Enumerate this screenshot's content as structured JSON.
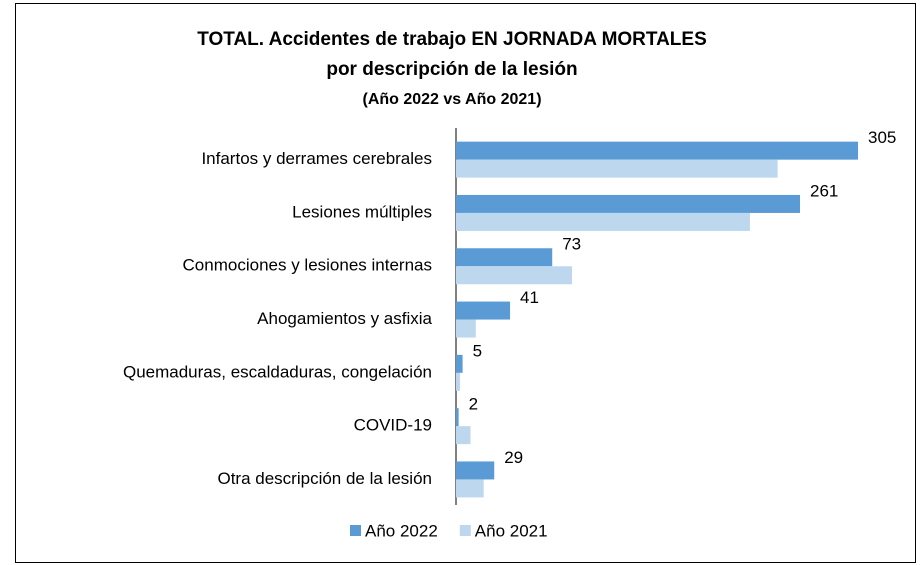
{
  "chart_data": {
    "type": "hbar",
    "title": [
      "TOTAL. Accidentes de trabajo EN JORNADA MORTALES",
      "por descripción de la lesión"
    ],
    "subtitle": "(Año 2022 vs Año 2021)",
    "categories": [
      "Infartos y derrames cerebrales",
      "Lesiones múltiples",
      "Conmociones y lesiones internas",
      "Ahogamientos y asfixia",
      "Quemaduras, escaldaduras, congelación",
      "COVID-19",
      "Otra descripción de la lesión"
    ],
    "series": [
      {
        "name": "Año 2022",
        "color": "#5b9bd5",
        "values": [
          305,
          261,
          73,
          41,
          5,
          2,
          29
        ]
      },
      {
        "name": "Año 2021",
        "color": "#bdd7ee",
        "values": [
          244,
          223,
          88,
          15,
          3,
          11,
          21
        ]
      }
    ],
    "legend": "bottom"
  }
}
